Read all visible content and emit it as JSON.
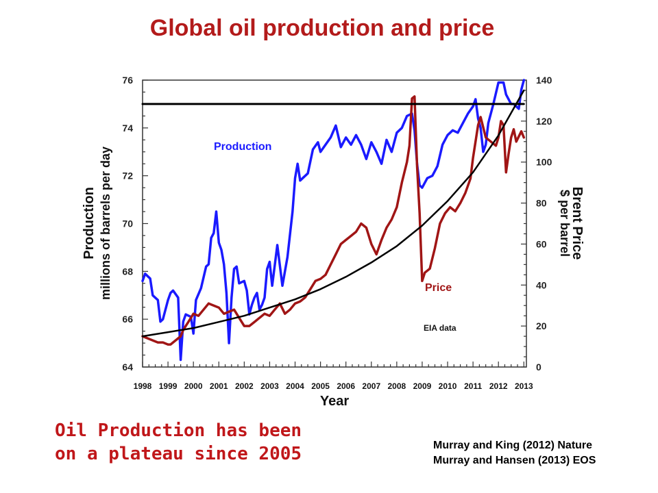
{
  "page": {
    "title": "Global oil production and price",
    "caption_line1": "Oil Production has been",
    "caption_line2": "on a plateau since 2005",
    "refs": [
      "Murray and King (2012) Nature",
      "Murray and Hansen (2013) EOS"
    ]
  },
  "chart_data": {
    "type": "line",
    "xlabel": "Year",
    "ylabel_left": "Production",
    "ylabel_left_sub": "millions of barrels per day",
    "ylabel_right": "Brent Price",
    "ylabel_right_sub": "$ per barrel",
    "x_ticks": [
      "1998",
      "1999",
      "2000",
      "2001",
      "2002",
      "2003",
      "2004",
      "2005",
      "2006",
      "2007",
      "2008",
      "2009",
      "2010",
      "2011",
      "2012",
      "2013"
    ],
    "xlim": [
      1998,
      2013.1
    ],
    "ylim_left": [
      64,
      76
    ],
    "ylim_right": [
      0,
      140
    ],
    "y_ticks_left": [
      64,
      66,
      68,
      70,
      72,
      74,
      76
    ],
    "y_ticks_right": [
      0,
      20,
      40,
      60,
      80,
      100,
      120,
      140
    ],
    "annotation": "EIA data",
    "colors": {
      "production": "#1a1aff",
      "price": "#a01515",
      "trend": "#000000",
      "plateau": "#000000"
    },
    "series": [
      {
        "name": "Production",
        "axis": "left",
        "x": [
          1998.0,
          1998.1,
          1998.3,
          1998.4,
          1998.6,
          1998.7,
          1998.8,
          1999.0,
          1999.1,
          1999.2,
          1999.4,
          1999.5,
          1999.6,
          1999.7,
          1999.9,
          2000.0,
          2000.1,
          2000.3,
          2000.5,
          2000.6,
          2000.7,
          2000.8,
          2000.9,
          2001.0,
          2001.1,
          2001.2,
          2001.3,
          2001.4,
          2001.5,
          2001.6,
          2001.7,
          2001.8,
          2002.0,
          2002.1,
          2002.2,
          2002.3,
          2002.4,
          2002.5,
          2002.6,
          2002.7,
          2002.8,
          2002.9,
          2003.0,
          2003.1,
          2003.3,
          2003.5,
          2003.7,
          2003.9,
          2004.0,
          2004.1,
          2004.2,
          2004.3,
          2004.5,
          2004.7,
          2004.9,
          2005.0,
          2005.2,
          2005.4,
          2005.6,
          2005.8,
          2006.0,
          2006.2,
          2006.4,
          2006.6,
          2006.8,
          2007.0,
          2007.2,
          2007.4,
          2007.6,
          2007.8,
          2008.0,
          2008.2,
          2008.4,
          2008.6,
          2008.7,
          2008.8,
          2008.9,
          2009.0,
          2009.1,
          2009.2,
          2009.4,
          2009.6,
          2009.8,
          2010.0,
          2010.2,
          2010.4,
          2010.6,
          2010.8,
          2011.0,
          2011.1,
          2011.2,
          2011.3,
          2011.4,
          2011.5,
          2011.6,
          2011.8,
          2012.0,
          2012.2,
          2012.3,
          2012.4,
          2012.5,
          2012.6,
          2012.8,
          2012.9,
          2013.0
        ],
        "values": [
          67.6,
          67.9,
          67.7,
          67.0,
          66.8,
          65.9,
          66.0,
          66.8,
          67.1,
          67.2,
          66.9,
          64.3,
          65.9,
          66.2,
          66.1,
          65.4,
          66.8,
          67.3,
          68.2,
          68.3,
          69.4,
          69.6,
          70.5,
          69.2,
          68.9,
          68.3,
          67.1,
          65.0,
          66.9,
          68.1,
          68.2,
          67.5,
          67.6,
          67.2,
          66.2,
          66.6,
          66.9,
          67.1,
          66.4,
          66.6,
          66.9,
          68.1,
          68.4,
          67.4,
          69.1,
          67.4,
          68.6,
          70.5,
          71.9,
          72.5,
          71.8,
          71.9,
          72.1,
          73.1,
          73.4,
          73.0,
          73.3,
          73.6,
          74.1,
          73.2,
          73.6,
          73.3,
          73.7,
          73.3,
          72.7,
          73.4,
          73.0,
          72.5,
          73.5,
          73.0,
          73.8,
          74.0,
          74.5,
          74.6,
          73.9,
          72.5,
          71.6,
          71.5,
          71.7,
          71.9,
          72.0,
          72.4,
          73.3,
          73.7,
          73.9,
          73.8,
          74.2,
          74.6,
          74.9,
          75.2,
          74.4,
          74.0,
          73.0,
          73.3,
          74.2,
          75.0,
          75.9,
          75.9,
          75.4,
          75.2,
          75.0,
          75.0,
          74.8,
          75.6,
          76.0
        ]
      },
      {
        "name": "Price",
        "axis": "right",
        "x": [
          1998.0,
          1998.2,
          1998.4,
          1998.6,
          1998.8,
          1999.0,
          1999.1,
          1999.2,
          1999.3,
          1999.4,
          1999.5,
          1999.6,
          1999.7,
          1999.8,
          1999.9,
          2000.0,
          2000.2,
          2000.4,
          2000.6,
          2000.8,
          2001.0,
          2001.2,
          2001.4,
          2001.6,
          2001.8,
          2002.0,
          2002.2,
          2002.4,
          2002.6,
          2002.8,
          2003.0,
          2003.2,
          2003.4,
          2003.6,
          2003.8,
          2004.0,
          2004.2,
          2004.4,
          2004.6,
          2004.8,
          2005.0,
          2005.2,
          2005.4,
          2005.6,
          2005.8,
          2006.0,
          2006.2,
          2006.4,
          2006.6,
          2006.8,
          2007.0,
          2007.2,
          2007.4,
          2007.6,
          2007.8,
          2008.0,
          2008.2,
          2008.4,
          2008.5,
          2008.6,
          2008.7,
          2008.8,
          2008.9,
          2009.0,
          2009.1,
          2009.3,
          2009.5,
          2009.7,
          2009.9,
          2010.1,
          2010.3,
          2010.5,
          2010.7,
          2010.9,
          2011.0,
          2011.1,
          2011.2,
          2011.3,
          2011.5,
          2011.7,
          2011.9,
          2012.0,
          2012.1,
          2012.2,
          2012.3,
          2012.4,
          2012.5,
          2012.6,
          2012.7,
          2012.9,
          2013.0
        ],
        "values": [
          15,
          14,
          13,
          12,
          12,
          11,
          11,
          12,
          13,
          14,
          15,
          18,
          20,
          22,
          24,
          26,
          25,
          28,
          31,
          30,
          29,
          26,
          27,
          28,
          24,
          20,
          20,
          22,
          24,
          26,
          25,
          28,
          31,
          26,
          28,
          31,
          32,
          34,
          38,
          42,
          43,
          45,
          50,
          55,
          60,
          62,
          64,
          66,
          70,
          68,
          60,
          55,
          62,
          68,
          72,
          78,
          90,
          100,
          108,
          131,
          132,
          98,
          75,
          42,
          46,
          48,
          58,
          70,
          75,
          78,
          76,
          80,
          85,
          92,
          102,
          110,
          118,
          122,
          112,
          110,
          108,
          112,
          120,
          118,
          95,
          104,
          112,
          116,
          110,
          115,
          112
        ]
      },
      {
        "name": "",
        "axis": "right",
        "x": [
          1998.0,
          1999.0,
          2000.0,
          2001.0,
          2002.0,
          2003.0,
          2004.0,
          2005.0,
          2006.0,
          2007.0,
          2008.0,
          2009.0,
          2010.0,
          2011.0,
          2012.0,
          2013.0
        ],
        "values": [
          15,
          17,
          19,
          22,
          25,
          29,
          33,
          38,
          44,
          51,
          59,
          69,
          81,
          95,
          113,
          135
        ]
      },
      {
        "name": "",
        "axis": "left",
        "x": [
          1998.0,
          2013.0
        ],
        "values": [
          75.0,
          75.0
        ]
      }
    ]
  }
}
